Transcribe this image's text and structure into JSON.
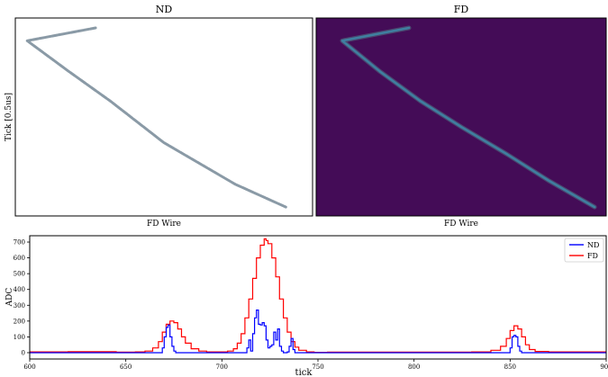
{
  "panels": {
    "nd": {
      "title": "ND",
      "xlabel": "FD Wire",
      "ylabel": "Tick [0.5us]"
    },
    "fd": {
      "title": "FD",
      "xlabel": "FD Wire"
    }
  },
  "colors": {
    "nd_track": "#8a9aa6",
    "fd_background": "#440c57",
    "fd_track": "#3f7fa0",
    "fd_track_hot": "#58b39a",
    "nd_series": "#0000ff",
    "fd_series": "#ff0000"
  },
  "chart_data": [
    {
      "type": "image",
      "title": "ND",
      "xlabel": "FD Wire",
      "ylabel": "Tick [0.5us]",
      "track": [
        [
          0.27,
          0.05
        ],
        [
          0.04,
          0.115
        ],
        [
          0.18,
          0.27
        ],
        [
          0.32,
          0.42
        ],
        [
          0.5,
          0.63
        ],
        [
          0.74,
          0.84
        ],
        [
          0.91,
          0.955
        ]
      ]
    },
    {
      "type": "image",
      "title": "FD",
      "xlabel": "FD Wire",
      "track": [
        [
          0.32,
          0.05
        ],
        [
          0.09,
          0.115
        ],
        [
          0.22,
          0.27
        ],
        [
          0.36,
          0.42
        ],
        [
          0.5,
          0.55
        ],
        [
          0.66,
          0.69
        ],
        [
          0.8,
          0.82
        ],
        [
          0.96,
          0.955
        ]
      ]
    },
    {
      "type": "line",
      "xlabel": "tick",
      "ylabel": "ADC",
      "xlim": [
        600,
        900
      ],
      "ylim": [
        -40,
        740
      ],
      "xticks": [
        600,
        650,
        700,
        750,
        800,
        850,
        900
      ],
      "yticks": [
        0,
        100,
        200,
        300,
        400,
        500,
        600,
        700
      ],
      "legend_position": "top-right",
      "series": [
        {
          "name": "ND",
          "x": [
            600,
            668,
            669,
            670,
            671,
            672,
            673,
            674,
            675,
            676,
            712,
            713,
            714,
            715,
            716,
            717,
            718,
            719,
            720,
            721,
            722,
            723,
            724,
            725,
            726,
            727,
            728,
            729,
            730,
            731,
            732,
            733,
            734,
            735,
            736,
            737,
            738,
            849,
            850,
            851,
            852,
            853,
            854,
            855,
            856,
            857,
            900
          ],
          "y": [
            0,
            0,
            30,
            100,
            160,
            175,
            100,
            40,
            10,
            0,
            0,
            30,
            80,
            10,
            120,
            220,
            270,
            180,
            175,
            190,
            170,
            80,
            30,
            40,
            50,
            130,
            80,
            150,
            40,
            10,
            0,
            0,
            5,
            40,
            90,
            20,
            0,
            0,
            30,
            100,
            110,
            100,
            40,
            10,
            0,
            0,
            0
          ]
        },
        {
          "name": "FD",
          "x": [
            600,
            620,
            635,
            645,
            655,
            660,
            664,
            667,
            669,
            671,
            673,
            675,
            677,
            679,
            681,
            684,
            688,
            692,
            698,
            703,
            706,
            708,
            710,
            712,
            714,
            716,
            718,
            720,
            722,
            723,
            724,
            726,
            728,
            730,
            732,
            734,
            736,
            738,
            740,
            744,
            748,
            755,
            765,
            780,
            800,
            815,
            830,
            840,
            845,
            848,
            850,
            852,
            854,
            856,
            858,
            860,
            863,
            870,
            880,
            900
          ],
          "y": [
            5,
            6,
            6,
            4,
            5,
            10,
            30,
            70,
            130,
            180,
            200,
            190,
            150,
            100,
            60,
            25,
            10,
            5,
            5,
            10,
            25,
            60,
            120,
            220,
            340,
            470,
            600,
            680,
            720,
            710,
            690,
            600,
            480,
            340,
            220,
            130,
            70,
            35,
            15,
            5,
            2,
            3,
            4,
            3,
            3,
            4,
            5,
            15,
            40,
            90,
            140,
            170,
            150,
            100,
            50,
            20,
            8,
            5,
            5,
            4
          ]
        }
      ]
    }
  ]
}
